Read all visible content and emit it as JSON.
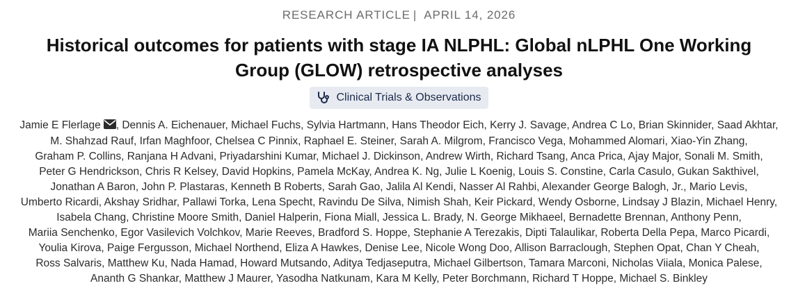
{
  "article": {
    "type": "RESEARCH ARTICLE",
    "separator": "|",
    "date": "APRIL 14, 2026",
    "title": "Historical outcomes for patients with stage IA NLPHL: Global nLPHL One Working Group (GLOW) retrospective analyses",
    "category": {
      "icon": "stethoscope-icon",
      "label": "Clinical Trials & Observations"
    },
    "corresponding_author_icon": "envelope-icon",
    "authors": [
      "Jamie E Flerlage",
      "Dennis A. Eichenauer",
      "Michael Fuchs",
      "Sylvia Hartmann",
      "Hans Theodor Eich",
      "Kerry J. Savage",
      "Andrea C Lo",
      "Brian Skinnider",
      "Saad Akhtar",
      "M. Shahzad Rauf",
      "Irfan Maghfoor",
      "Chelsea C Pinnix",
      "Raphael E. Steiner",
      "Sarah A. Milgrom",
      "Francisco Vega",
      "Mohammed Alomari",
      "Xiao-Yin Zhang",
      "Graham P. Collins",
      "Ranjana H Advani",
      "Priyadarshini Kumar",
      "Michael J. Dickinson",
      "Andrew Wirth",
      "Richard Tsang",
      "Anca Prica",
      "Ajay Major",
      "Sonali M. Smith",
      "Peter G Hendrickson",
      "Chris R Kelsey",
      "David Hopkins",
      "Pamela McKay",
      "Andrea K. Ng",
      "Julie L Koenig",
      "Louis S. Constine",
      "Carla Casulo",
      "Gukan Sakthivel",
      "Jonathan A Baron",
      "John P. Plastaras",
      "Kenneth B Roberts",
      "Sarah Gao",
      "Jalila Al Kendi",
      "Nasser Al Rahbi",
      "Alexander George Balogh, Jr.",
      "Mario Levis",
      "Umberto Ricardi",
      "Akshay Sridhar",
      "Pallawi Torka",
      "Lena Specht",
      "Ravindu De Silva",
      "Nimish Shah",
      "Keir Pickard",
      "Wendy Osborne",
      "Lindsay J Blazin",
      "Michael Henry",
      "Isabela Chang",
      "Christine Moore Smith",
      "Daniel Halperin",
      "Fiona Miall",
      "Jessica L. Brady",
      "N. George Mikhaeel",
      "Bernadette Brennan",
      "Anthony Penn",
      "Mariia Senchenko",
      "Egor Vasilevich Volchkov",
      "Marie Reeves",
      "Bradford S. Hoppe",
      "Stephanie A Terezakis",
      "Dipti Talaulikar",
      "Roberta Della Pepa",
      "Marco Picardi",
      "Youlia Kirova",
      "Paige Fergusson",
      "Michael Northend",
      "Eliza A Hawkes",
      "Denise Lee",
      "Nicole Wong Doo",
      "Allison Barraclough",
      "Stephen Opat",
      "Chan Y Cheah",
      "Ross Salvaris",
      "Matthew Ku",
      "Nada Hamad",
      "Howard Mutsando",
      "Aditya Tedjaseputra",
      "Michael Gilbertson",
      "Tamara Marconi",
      "Nicholas Viiala",
      "Monica Palese",
      "Ananth G Shankar",
      "Matthew J Maurer",
      "Yasodha Natkunam",
      "Kara M Kelly",
      "Peter Borchmann",
      "Richard T Hoppe",
      "Michael S. Binkley"
    ]
  }
}
